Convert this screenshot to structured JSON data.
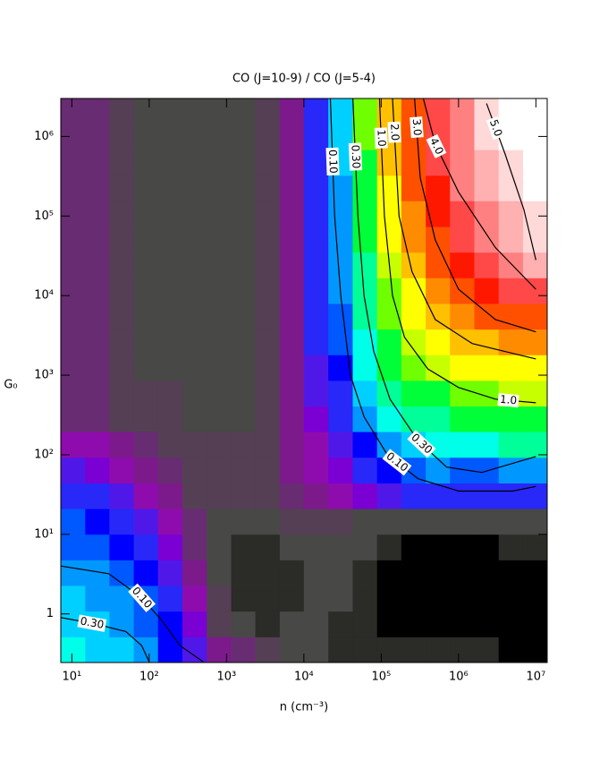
{
  "chart_data": {
    "type": "heatmap",
    "title": "CO (J=10-9) / CO (J=5-4)",
    "xlabel": "n (cm⁻³)",
    "ylabel": "G₀",
    "log_x": true,
    "log_y": true,
    "xlim": [
      7.2,
      14000000
    ],
    "ylim": [
      0.245,
      3000000
    ],
    "xticks": [
      {
        "value": 10,
        "label": "10¹"
      },
      {
        "value": 100,
        "label": "10²"
      },
      {
        "value": 1000,
        "label": "10³"
      },
      {
        "value": 10000,
        "label": "10⁴"
      },
      {
        "value": 100000,
        "label": "10⁵"
      },
      {
        "value": 1000000,
        "label": "10⁶"
      },
      {
        "value": 10000000,
        "label": "10⁷"
      }
    ],
    "yticks": [
      1,
      {
        "value": 10,
        "label": "10¹"
      },
      {
        "value": 100,
        "label": "10²"
      },
      {
        "value": 1000,
        "label": "10³"
      },
      {
        "value": 10000,
        "label": "10⁴"
      },
      {
        "value": 100000,
        "label": "10⁵"
      },
      {
        "value": 1000000,
        "label": "10⁶"
      }
    ],
    "xbins": [
      7.2,
      14.9,
      30.6,
      63.2,
      130,
      269,
      555,
      1150,
      2360,
      4880,
      10000,
      20700,
      42800,
      88300,
      182000,
      376000,
      774000,
      1600000,
      3300000,
      6810000,
      14000000
    ],
    "ybins": [
      0.245,
      0.514,
      1.08,
      2.27,
      4.76,
      10,
      21,
      44,
      92.7,
      195,
      408,
      857,
      1800,
      3780,
      7940,
      16700,
      35000,
      73500,
      155000,
      324000,
      681000,
      1430000,
      3000000
    ],
    "z": [
      [
        0.3,
        0.27,
        0.2,
        0.15,
        0.09,
        0.05,
        0.02,
        0.012,
        0.008,
        0.006,
        0.006,
        0.003,
        0.003,
        0.003,
        0.003,
        0.003,
        0.003,
        0.003,
        0.002,
        0.002
      ],
      [
        0.26,
        0.22,
        0.18,
        0.13,
        0.08,
        0.04,
        0.01,
        0.006,
        0.003,
        0.006,
        0.006,
        0.003,
        0.003,
        0.002,
        0.002,
        0.002,
        0.002,
        0.002,
        0.002,
        0.002
      ],
      [
        0.2,
        0.18,
        0.15,
        0.11,
        0.07,
        0.03,
        0.008,
        0.003,
        0.003,
        0.003,
        0.006,
        0.006,
        0.003,
        0.002,
        0.002,
        0.002,
        0.002,
        0.002,
        0.002,
        0.002
      ],
      [
        0.16,
        0.15,
        0.12,
        0.09,
        0.05,
        0.02,
        0.006,
        0.003,
        0.003,
        0.003,
        0.006,
        0.006,
        0.003,
        0.002,
        0.002,
        0.002,
        0.002,
        0.002,
        0.002,
        0.002
      ],
      [
        0.13,
        0.12,
        0.09,
        0.07,
        0.04,
        0.015,
        0.006,
        0.003,
        0.003,
        0.006,
        0.006,
        0.006,
        0.006,
        0.003,
        0.002,
        0.002,
        0.002,
        0.002,
        0.003,
        0.003
      ],
      [
        0.1,
        0.09,
        0.07,
        0.05,
        0.03,
        0.012,
        0.006,
        0.006,
        0.006,
        0.008,
        0.008,
        0.008,
        0.006,
        0.006,
        0.006,
        0.006,
        0.006,
        0.006,
        0.006,
        0.006
      ],
      [
        0.07,
        0.06,
        0.045,
        0.03,
        0.02,
        0.01,
        0.008,
        0.008,
        0.008,
        0.012,
        0.02,
        0.03,
        0.04,
        0.05,
        0.06,
        0.07,
        0.07,
        0.07,
        0.07,
        0.07
      ],
      [
        0.045,
        0.04,
        0.03,
        0.02,
        0.012,
        0.009,
        0.008,
        0.008,
        0.009,
        0.02,
        0.03,
        0.04,
        0.06,
        0.09,
        0.12,
        0.14,
        0.13,
        0.13,
        0.14,
        0.15
      ],
      [
        0.03,
        0.025,
        0.02,
        0.014,
        0.01,
        0.008,
        0.008,
        0.008,
        0.009,
        0.02,
        0.03,
        0.05,
        0.09,
        0.16,
        0.25,
        0.32,
        0.35,
        0.36,
        0.38,
        0.4
      ],
      [
        0.016,
        0.014,
        0.01,
        0.008,
        0.008,
        0.006,
        0.006,
        0.006,
        0.009,
        0.02,
        0.04,
        0.06,
        0.14,
        0.28,
        0.4,
        0.5,
        0.55,
        0.6,
        0.62,
        0.65
      ],
      [
        0.016,
        0.014,
        0.01,
        0.008,
        0.008,
        0.006,
        0.005,
        0.006,
        0.009,
        0.02,
        0.05,
        0.07,
        0.2,
        0.4,
        0.6,
        0.75,
        0.85,
        0.95,
        1.0,
        1.1
      ],
      [
        0.014,
        0.012,
        0.009,
        0.007,
        0.007,
        0.006,
        0.005,
        0.006,
        0.009,
        0.02,
        0.05,
        0.09,
        0.28,
        0.55,
        0.85,
        1.1,
        1.3,
        1.5,
        1.6,
        1.7
      ],
      [
        0.014,
        0.012,
        0.009,
        0.007,
        0.007,
        0.006,
        0.005,
        0.006,
        0.009,
        0.02,
        0.06,
        0.1,
        0.32,
        0.7,
        1.1,
        1.5,
        1.9,
        2.1,
        2.2,
        2.4
      ],
      [
        0.014,
        0.012,
        0.009,
        0.007,
        0.006,
        0.006,
        0.006,
        0.006,
        0.009,
        0.02,
        0.06,
        0.12,
        0.4,
        0.85,
        1.4,
        2.0,
        2.5,
        2.8,
        3.0,
        3.2
      ],
      [
        0.014,
        0.012,
        0.009,
        0.007,
        0.005,
        0.006,
        0.006,
        0.007,
        0.009,
        0.02,
        0.06,
        0.14,
        0.45,
        0.95,
        1.7,
        2.4,
        3.0,
        3.4,
        3.7,
        4.0
      ],
      [
        0.014,
        0.012,
        0.009,
        0.006,
        0.005,
        0.005,
        0.006,
        0.007,
        0.009,
        0.02,
        0.06,
        0.15,
        0.5,
        1.1,
        2.0,
        2.8,
        3.5,
        3.9,
        4.3,
        4.6
      ],
      [
        0.014,
        0.012,
        0.009,
        0.006,
        0.005,
        0.005,
        0.006,
        0.007,
        0.009,
        0.02,
        0.06,
        0.16,
        0.6,
        1.3,
        2.3,
        3.1,
        3.8,
        4.2,
        4.5,
        4.9
      ],
      [
        0.014,
        0.012,
        0.009,
        0.007,
        0.005,
        0.005,
        0.006,
        0.007,
        0.009,
        0.02,
        0.06,
        0.18,
        0.65,
        1.5,
        2.6,
        3.4,
        4.0,
        4.4,
        4.8,
        5.1
      ],
      [
        0.014,
        0.012,
        0.009,
        0.007,
        0.006,
        0.005,
        0.006,
        0.007,
        0.009,
        0.02,
        0.06,
        0.18,
        0.7,
        1.7,
        2.8,
        3.6,
        4.2,
        4.6,
        5.1,
        5.4
      ],
      [
        0.014,
        0.012,
        0.009,
        0.007,
        0.006,
        0.006,
        0.006,
        0.007,
        0.009,
        0.02,
        0.06,
        0.2,
        0.75,
        1.8,
        3.0,
        3.7,
        4.3,
        4.8,
        5.3,
        5.6
      ],
      [
        0.014,
        0.012,
        0.009,
        0.007,
        0.006,
        0.006,
        0.007,
        0.007,
        0.009,
        0.02,
        0.06,
        0.2,
        0.8,
        1.9,
        3.1,
        3.8,
        4.4,
        5.0,
        5.5,
        5.8
      ],
      [
        0.014,
        0.012,
        0.009,
        0.007,
        0.006,
        0.006,
        0.007,
        0.007,
        0.009,
        0.02,
        0.07,
        0.2,
        0.8,
        2.0,
        3.2,
        3.8,
        4.4,
        5.0,
        5.6,
        5.8
      ]
    ],
    "colorscale": [
      {
        "value": 0,
        "color": "#000000"
      },
      {
        "value": 0.0025,
        "color": "#2b2b28"
      },
      {
        "value": 0.005,
        "color": "#484846"
      },
      {
        "value": 0.0075,
        "color": "#553f55"
      },
      {
        "value": 0.011,
        "color": "#682c72"
      },
      {
        "value": 0.017,
        "color": "#7c1a8c"
      },
      {
        "value": 0.025,
        "color": "#8e0cae"
      },
      {
        "value": 0.035,
        "color": "#7a00d4"
      },
      {
        "value": 0.045,
        "color": "#5018e8"
      },
      {
        "value": 0.06,
        "color": "#2828f8"
      },
      {
        "value": 0.075,
        "color": "#0000ff"
      },
      {
        "value": 0.1,
        "color": "#0058ff"
      },
      {
        "value": 0.14,
        "color": "#0098ff"
      },
      {
        "value": 0.2,
        "color": "#00d0ff"
      },
      {
        "value": 0.28,
        "color": "#00ffe8"
      },
      {
        "value": 0.38,
        "color": "#00ff98"
      },
      {
        "value": 0.55,
        "color": "#00ff38"
      },
      {
        "value": 0.8,
        "color": "#70ff00"
      },
      {
        "value": 1.0,
        "color": "#c8ff00"
      },
      {
        "value": 1.3,
        "color": "#ffff00"
      },
      {
        "value": 1.8,
        "color": "#ffc000"
      },
      {
        "value": 2.2,
        "color": "#ff8c00"
      },
      {
        "value": 2.8,
        "color": "#ff5000"
      },
      {
        "value": 3.3,
        "color": "#ff1800"
      },
      {
        "value": 3.7,
        "color": "#ff4848"
      },
      {
        "value": 4.1,
        "color": "#ff8080"
      },
      {
        "value": 4.5,
        "color": "#ffb0b0"
      },
      {
        "value": 4.9,
        "color": "#ffd8d8"
      },
      {
        "value": 5.4,
        "color": "#ffffff"
      }
    ],
    "contour_color": "#000000",
    "contours": [
      {
        "level": 0.1,
        "label": "0.10",
        "x": [
          22000,
          25000,
          30000,
          40000,
          60000,
          120000,
          300000,
          1000000,
          5000000,
          10000000
        ],
        "y": [
          3000000,
          100000,
          10000,
          1000,
          300,
          100,
          50,
          35,
          35,
          40
        ]
      },
      {
        "level": 0.3,
        "label": "0.30",
        "x": [
          43000,
          50000,
          60000,
          80000,
          130000,
          300000,
          700000,
          2000000,
          10000000
        ],
        "y": [
          3000000,
          100000,
          10000,
          2000,
          500,
          150,
          70,
          60,
          95
        ]
      },
      {
        "level": 1.0,
        "label": "1.0",
        "x": [
          95000,
          110000,
          140000,
          200000,
          400000,
          1000000,
          3000000,
          10000000
        ],
        "y": [
          3000000,
          100000,
          10000,
          3000,
          1200,
          700,
          500,
          450
        ]
      },
      {
        "level": 2.0,
        "label": "2.0",
        "x": [
          140000,
          170000,
          250000,
          500000,
          1500000,
          10000000
        ],
        "y": [
          3000000,
          100000,
          20000,
          5000,
          2500,
          1600
        ]
      },
      {
        "level": 3.0,
        "label": "3.0",
        "x": [
          270000,
          320000,
          500000,
          1000000,
          3000000,
          10000000
        ],
        "y": [
          3000000,
          300000,
          50000,
          12000,
          5000,
          3500
        ]
      },
      {
        "level": 4.0,
        "label": "4.0",
        "x": [
          350000,
          500000,
          1000000,
          3000000,
          10000000
        ],
        "y": [
          3000000,
          800000,
          200000,
          40000,
          12000
        ]
      },
      {
        "level": 5.0,
        "label": "5.0",
        "x": [
          2300000,
          4000000,
          7000000,
          10000000
        ],
        "y": [
          2600000,
          600000,
          120000,
          28000
        ]
      },
      {
        "level": 0.1,
        "label": "0.10",
        "x": [
          7.2,
          30,
          80,
          150,
          250,
          500
        ],
        "y": [
          4,
          3.2,
          1.6,
          0.8,
          0.4,
          0.25
        ]
      },
      {
        "level": 0.3,
        "label": "0.30",
        "x": [
          7.2,
          20,
          50,
          80,
          100
        ],
        "y": [
          0.9,
          0.75,
          0.6,
          0.4,
          0.25
        ]
      }
    ]
  }
}
